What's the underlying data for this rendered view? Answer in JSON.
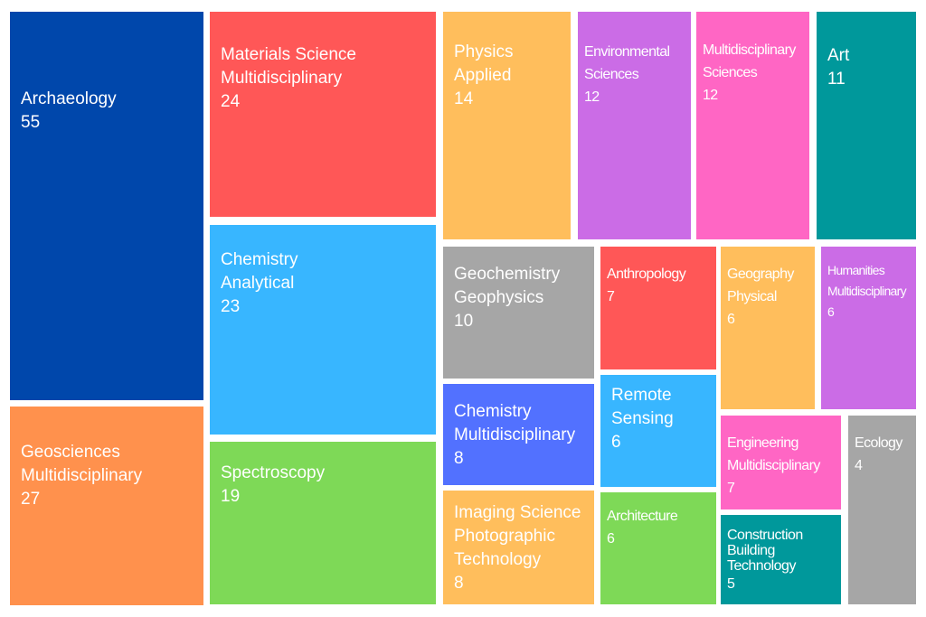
{
  "chart_data": {
    "type": "treemap",
    "colors": {
      "darkblue": "#0047AB",
      "red": "#FF5757",
      "yellow": "#FFBE5C",
      "purple": "#CB6CE6",
      "pink": "#FF66C4",
      "teal": "#00989B",
      "orange": "#FF914D",
      "lightblue": "#38B6FF",
      "gray": "#A6A6A6",
      "green": "#7ED957",
      "blue": "#5271FF"
    },
    "items": [
      {
        "lines": [
          "Archaeology"
        ],
        "value": 55,
        "color": "darkblue"
      },
      {
        "lines": [
          "Materials Science",
          "Multidisciplinary"
        ],
        "value": 24,
        "color": "red"
      },
      {
        "lines": [
          "Physics",
          "Applied"
        ],
        "value": 14,
        "color": "yellow"
      },
      {
        "lines": [
          "Environmental",
          "Sciences"
        ],
        "value": 12,
        "color": "purple"
      },
      {
        "lines": [
          "Multidisciplinary",
          "Sciences"
        ],
        "value": 12,
        "color": "pink"
      },
      {
        "lines": [
          "Art"
        ],
        "value": 11,
        "color": "teal"
      },
      {
        "lines": [
          "Geosciences",
          "Multidisciplinary"
        ],
        "value": 27,
        "color": "orange"
      },
      {
        "lines": [
          "Chemistry",
          "Analytical"
        ],
        "value": 23,
        "color": "lightblue"
      },
      {
        "lines": [
          "Spectroscopy"
        ],
        "value": 19,
        "color": "green"
      },
      {
        "lines": [
          "Geochemistry",
          "Geophysics"
        ],
        "value": 10,
        "color": "gray"
      },
      {
        "lines": [
          "Anthropology"
        ],
        "value": 7,
        "color": "red"
      },
      {
        "lines": [
          "Geography",
          "Physical"
        ],
        "value": 6,
        "color": "yellow"
      },
      {
        "lines": [
          "Humanities",
          "Multidisciplinary"
        ],
        "value": 6,
        "color": "purple"
      },
      {
        "lines": [
          "Chemistry",
          "Multidisciplinary"
        ],
        "value": 8,
        "color": "blue"
      },
      {
        "lines": [
          "Remote",
          "Sensing"
        ],
        "value": 6,
        "color": "lightblue"
      },
      {
        "lines": [
          "Engineering",
          "Multidisciplinary"
        ],
        "value": 7,
        "color": "pink"
      },
      {
        "lines": [
          "Ecology"
        ],
        "value": 4,
        "color": "gray"
      },
      {
        "lines": [
          "Imaging Science",
          "Photographic",
          "Technology"
        ],
        "value": 8,
        "color": "yellow"
      },
      {
        "lines": [
          "Architecture"
        ],
        "value": 6,
        "color": "green"
      },
      {
        "lines": [
          "Construction",
          "Building",
          "Technology"
        ],
        "value": 5,
        "color": "teal"
      }
    ]
  }
}
